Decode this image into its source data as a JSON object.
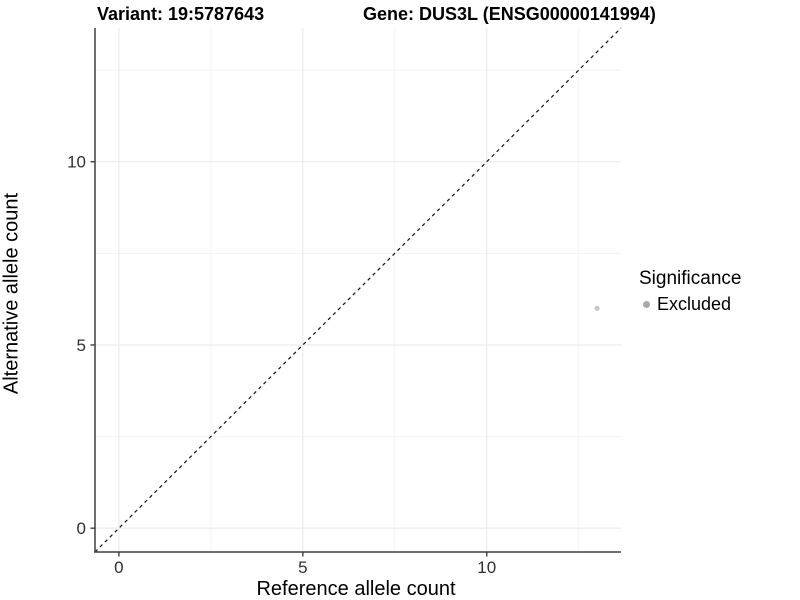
{
  "chart_data": {
    "type": "scatter",
    "titles": {
      "left": "Variant: 19:5787643",
      "right": "Gene: DUS3L (ENSG00000141994)"
    },
    "xlabel": "Reference allele count",
    "ylabel": "Alternative allele count",
    "xlim": [
      -0.65,
      13.65
    ],
    "ylim": [
      -0.65,
      13.65
    ],
    "x_ticks": [
      0,
      5,
      10
    ],
    "y_ticks": [
      0,
      5,
      10
    ],
    "x_minor_ticks": [
      2.5,
      7.5,
      12.5
    ],
    "y_minor_ticks": [
      2.5,
      7.5,
      12.5
    ],
    "grid": "major and minor, very light gray, white background",
    "points": [
      {
        "x": 13,
        "y": 6,
        "significance": "Excluded"
      }
    ],
    "point_color": "#c9c9c9",
    "reference_line": {
      "kind": "identity y=x",
      "style": "dashed",
      "x1": -0.65,
      "y1": -0.65,
      "x2": 13.65,
      "y2": 13.65
    },
    "legend": {
      "title": "Significance",
      "position": "right",
      "entries": [
        {
          "label": "Excluded",
          "color": "#a9a9a9"
        }
      ]
    },
    "colors": {
      "axis_line": "#3f3f3f",
      "tick_mark": "#333333",
      "tick_text": "#303030",
      "grid_major": "#e7e7e7",
      "grid_minor": "#f3f3f3",
      "dashed_line": "#111111",
      "background": "#ffffff"
    }
  }
}
